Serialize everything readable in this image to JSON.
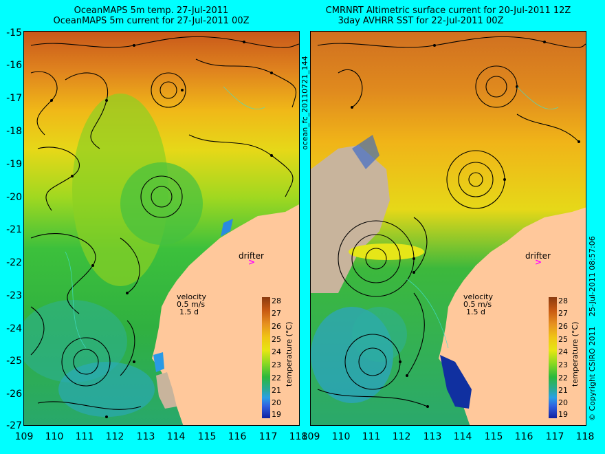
{
  "left_panel": {
    "title_line1": "OceanMAPS 5m temp. 27-Jul-2011",
    "title_line2": "OceanMAPS 5m current for 27-Jul-2011 00Z",
    "drifter_label": "drifter",
    "velocity_label": "velocity",
    "velocity_scale": "0.5 m/s",
    "velocity_days": "1.5 d",
    "colorbar_title": "temperature (°C)"
  },
  "right_panel": {
    "title_line1": "CMRNRT Altimetric surface current for 20-Jul-2011 12Z",
    "title_line2": "3day AVHRR SST for 22-Jul-2011 00Z",
    "drifter_label": "drifter",
    "velocity_label": "velocity",
    "velocity_scale": "0.5 m/s",
    "velocity_days": "1.5 d",
    "colorbar_title": "temperature (°C)",
    "file_id": "ocean_fc_20110721_144",
    "timestamp": "25-Jul-2011 08:57:06",
    "copyright": "© Copyright CSIRO 2011"
  },
  "axes": {
    "lat_labels": [
      "-15",
      "-16",
      "-17",
      "-18",
      "-19",
      "-20",
      "-21",
      "-22",
      "-23",
      "-24",
      "-25",
      "-26",
      "-27"
    ],
    "lon_labels": [
      "109",
      "110",
      "111",
      "112",
      "113",
      "114",
      "115",
      "116",
      "117",
      "118"
    ]
  },
  "colorbar": {
    "ticks": [
      "28",
      "27",
      "26",
      "25",
      "24",
      "23",
      "22",
      "21",
      "20",
      "19"
    ],
    "colors": [
      "#8b3a0f",
      "#c85a12",
      "#e69020",
      "#f0c414",
      "#e6e614",
      "#88d822",
      "#2cb83c",
      "#2aa8a0",
      "#2aa0e6",
      "#3060e0",
      "#1020a0"
    ]
  },
  "colors": {
    "background": "#00ffff",
    "land": "#ffc89b",
    "missing_data": "#c8b49c",
    "drifter_marker": "#ff00ff"
  }
}
